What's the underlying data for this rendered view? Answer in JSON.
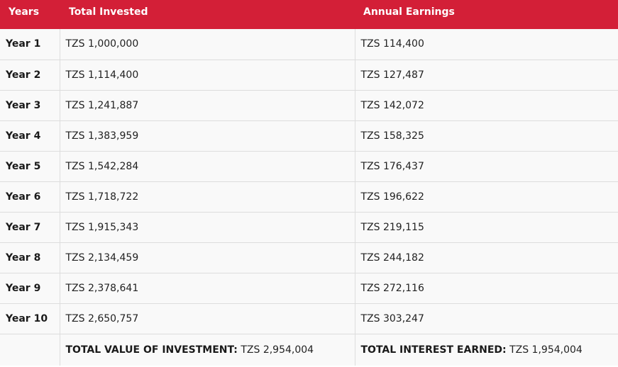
{
  "table": {
    "headers": {
      "years": "Years",
      "total_invested": "Total Invested",
      "annual_earnings": "Annual Earnings"
    },
    "rows": [
      {
        "year": "Year 1",
        "invested": "TZS 1,000,000",
        "earnings": "TZS 114,400"
      },
      {
        "year": "Year 2",
        "invested": "TZS 1,114,400",
        "earnings": "TZS 127,487"
      },
      {
        "year": "Year 3",
        "invested": "TZS 1,241,887",
        "earnings": "TZS 142,072"
      },
      {
        "year": "Year 4",
        "invested": "TZS 1,383,959",
        "earnings": "TZS 158,325"
      },
      {
        "year": "Year 5",
        "invested": "TZS 1,542,284",
        "earnings": "TZS 176,437"
      },
      {
        "year": "Year 6",
        "invested": "TZS 1,718,722",
        "earnings": "TZS 196,622"
      },
      {
        "year": "Year 7",
        "invested": "TZS 1,915,343",
        "earnings": "TZS 219,115"
      },
      {
        "year": "Year 8",
        "invested": "TZS 2,134,459",
        "earnings": "TZS 244,182"
      },
      {
        "year": "Year 9",
        "invested": "TZS 2,378,641",
        "earnings": "TZS 272,116"
      },
      {
        "year": "Year 10",
        "invested": "TZS 2,650,757",
        "earnings": "TZS 303,247"
      }
    ],
    "totals": {
      "value_label": "TOTAL VALUE OF INVESTMENT:",
      "value_amount": "TZS 2,954,004",
      "interest_label": "TOTAL INTEREST EARNED:",
      "interest_amount": "TZS 1,954,004"
    }
  },
  "colors": {
    "header_bg": "#d31f37",
    "header_text": "#ffffff",
    "row_bg": "#f9f9f9",
    "border": "#dddddd"
  }
}
